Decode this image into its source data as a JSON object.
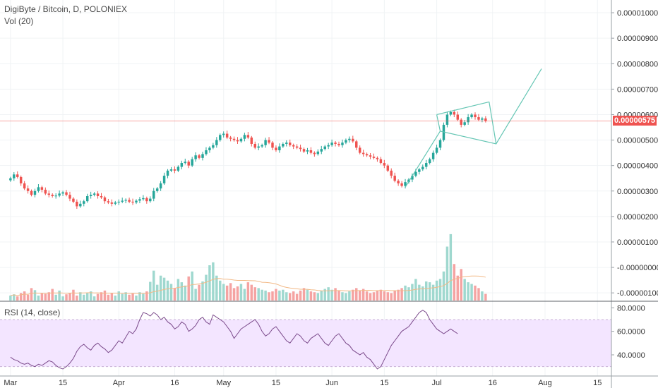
{
  "header": {
    "symbol": "DigiByte / Bitcoin, D, POLONIEX",
    "volume_label": "Vol (20)",
    "rsi_label": "RSI (14, close)"
  },
  "price_axis": {
    "ticks": [
      "0.00001000",
      "0.00000900",
      "0.00000800",
      "0.00000700",
      "0.00000600",
      "0.00000500",
      "0.00000400",
      "0.00000300",
      "0.00000200",
      "0.00000100",
      "-0.00000000",
      "-0.00000100"
    ],
    "tick_values": [
      1000,
      900,
      800,
      700,
      600,
      500,
      400,
      300,
      200,
      100,
      0,
      -100
    ],
    "last_price": "0.00000575",
    "last_value": 575
  },
  "rsi_axis": {
    "ticks": [
      "80.0000",
      "60.0000",
      "40.0000"
    ],
    "tick_values": [
      80,
      60,
      40
    ],
    "band": [
      30,
      70
    ]
  },
  "time_axis": {
    "labels": [
      "Mar",
      "15",
      "Apr",
      "16",
      "May",
      "15",
      "Jun",
      "15",
      "Jul",
      "16",
      "Aug",
      "15"
    ],
    "label_days": [
      0,
      15,
      31,
      47,
      61,
      76,
      92,
      107,
      122,
      138,
      153,
      168
    ]
  },
  "colors": {
    "up": "#26a69a",
    "down": "#ef5350",
    "volume_up": "#9fd8cf",
    "volume_down": "#f5a3a2",
    "rsi_line": "#7b4a8b",
    "rsi_band": "#f3e5ff",
    "channel": "#65c6b4",
    "price_line": "#ef5350",
    "volume_ma": "#f2b885"
  },
  "chart_data": {
    "type": "candlestick",
    "units": "BTC x 1e-9",
    "x_unit": "days from Mar 1",
    "x_range": [
      -3,
      172
    ],
    "price_range": [
      -130,
      1050
    ],
    "rsi_range": [
      22,
      85
    ],
    "close": [
      350,
      365,
      355,
      330,
      310,
      300,
      285,
      300,
      315,
      305,
      290,
      285,
      280,
      282,
      290,
      295,
      285,
      270,
      258,
      240,
      250,
      260,
      280,
      285,
      290,
      280,
      275,
      260,
      255,
      250,
      255,
      258,
      262,
      265,
      258,
      255,
      262,
      268,
      272,
      260,
      270,
      300,
      310,
      330,
      360,
      380,
      385,
      380,
      395,
      410,
      415,
      400,
      425,
      440,
      430,
      445,
      460,
      470,
      480,
      500,
      520,
      525,
      510,
      505,
      500,
      495,
      505,
      520,
      510,
      485,
      470,
      475,
      480,
      500,
      490,
      470,
      460,
      475,
      485,
      490,
      480,
      475,
      470,
      465,
      455,
      460,
      450,
      445,
      455,
      465,
      475,
      480,
      490,
      485,
      480,
      490,
      500,
      505,
      495,
      470,
      450,
      445,
      440,
      435,
      430,
      425,
      410,
      400,
      380,
      360,
      340,
      330,
      320,
      335,
      345,
      360,
      375,
      385,
      395,
      410,
      425,
      450,
      470,
      500,
      560,
      600,
      610,
      600,
      580,
      560,
      570,
      590,
      600,
      590,
      580,
      585,
      575
    ],
    "volume": [
      12,
      15,
      10,
      18,
      22,
      14,
      30,
      25,
      12,
      18,
      16,
      20,
      28,
      14,
      24,
      10,
      15,
      18,
      26,
      12,
      20,
      14,
      18,
      22,
      10,
      16,
      20,
      24,
      14,
      18,
      12,
      22,
      16,
      20,
      14,
      18,
      12,
      20,
      16,
      22,
      45,
      72,
      38,
      60,
      55,
      48,
      40,
      30,
      52,
      44,
      36,
      58,
      70,
      28,
      38,
      46,
      62,
      85,
      92,
      60,
      48,
      40,
      36,
      42,
      30,
      34,
      40,
      28,
      44,
      38,
      32,
      30,
      26,
      24,
      20,
      22,
      28,
      24,
      26,
      20,
      18,
      22,
      16,
      24,
      30,
      26,
      22,
      20,
      18,
      24,
      28,
      32,
      26,
      30,
      24,
      20,
      18,
      22,
      26,
      30,
      24,
      28,
      22,
      18,
      20,
      24,
      26,
      22,
      20,
      18,
      24,
      26,
      30,
      36,
      32,
      40,
      52,
      38,
      34,
      46,
      44,
      38,
      48,
      52,
      70,
      130,
      160,
      88,
      60,
      76,
      52,
      44,
      40,
      36,
      30,
      22,
      16
    ],
    "rsi": [
      38,
      36,
      35,
      33,
      32,
      33,
      31,
      30,
      32,
      31,
      33,
      35,
      34,
      31,
      29,
      28,
      30,
      33,
      37,
      43,
      47,
      49,
      46,
      44,
      48,
      50,
      47,
      45,
      42,
      44,
      48,
      52,
      50,
      55,
      60,
      58,
      62,
      70,
      76,
      75,
      73,
      76,
      74,
      70,
      72,
      68,
      66,
      62,
      64,
      68,
      66,
      60,
      62,
      65,
      70,
      72,
      68,
      66,
      74,
      72,
      70,
      68,
      64,
      60,
      54,
      58,
      62,
      64,
      66,
      68,
      70,
      66,
      60,
      56,
      58,
      62,
      64,
      60,
      56,
      52,
      50,
      54,
      58,
      56,
      52,
      50,
      54,
      56,
      58,
      54,
      50,
      48,
      52,
      56,
      58,
      54,
      50,
      48,
      44,
      42,
      40,
      42,
      38,
      36,
      32,
      28,
      30,
      36,
      42,
      48,
      52,
      56,
      60,
      62,
      64,
      68,
      72,
      76,
      78,
      76,
      70,
      66,
      62,
      60,
      58,
      60,
      62,
      60,
      58
    ],
    "channel_lower": [
      [
        113,
        315
      ],
      [
        123,
        535
      ],
      [
        139,
        485
      ],
      [
        152,
        780
      ]
    ],
    "channel_upper": [
      [
        122,
        600
      ],
      [
        137,
        650
      ]
    ]
  }
}
